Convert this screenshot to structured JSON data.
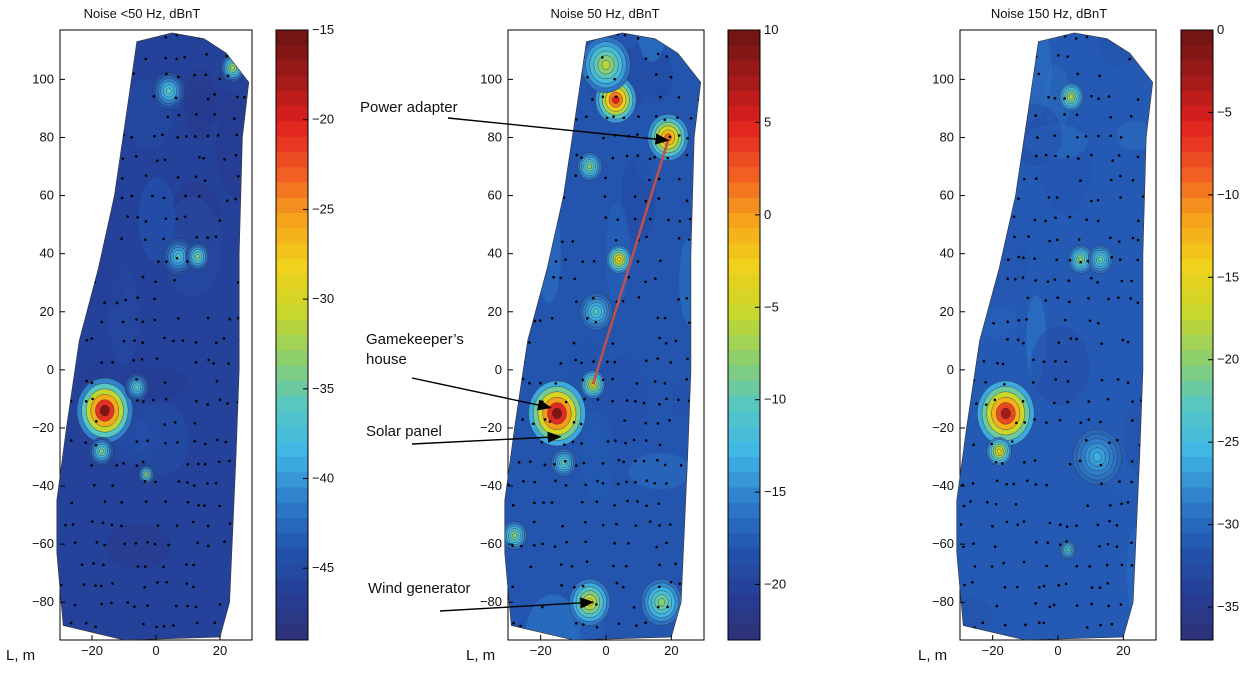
{
  "colors": {
    "background_low": "#1f3a8a",
    "plot_background": "#ffffff",
    "annotation_arrow": "#000000",
    "cable_line": "#c0504d",
    "points": "#000000"
  },
  "colormap": [
    "#2e3176",
    "#253f96",
    "#2356b0",
    "#2f7fcb",
    "#3fb6e6",
    "#57c7c0",
    "#8ecf6c",
    "#c9d72a",
    "#f2d11a",
    "#f6a01c",
    "#f05a23",
    "#e0201f",
    "#a01a1a",
    "#6a1410"
  ],
  "axis_label": "L, m",
  "chart_data": [
    {
      "type": "heatmap",
      "title": "Noise <50 Hz, dBnT",
      "xlim": [
        -30,
        30
      ],
      "ylim": [
        -93,
        117
      ],
      "x_ticks": [
        -20,
        0,
        20
      ],
      "y_ticks": [
        -80,
        -60,
        -40,
        -20,
        0,
        20,
        40,
        60,
        80,
        100
      ],
      "colorbar": {
        "min": -49,
        "max": -15,
        "ticks": [
          -45,
          -40,
          -35,
          -30,
          -25,
          -20,
          -15
        ]
      },
      "background_value": -46,
      "hotspots": [
        {
          "x": -16,
          "y": -14,
          "value": -16,
          "radius": 7
        },
        {
          "x": -17,
          "y": -28,
          "value": -34,
          "radius": 3
        },
        {
          "x": -6,
          "y": -6,
          "value": -36,
          "radius": 3
        },
        {
          "x": 4,
          "y": 96,
          "value": -36,
          "radius": 4
        },
        {
          "x": 7,
          "y": 39,
          "value": -37,
          "radius": 4
        },
        {
          "x": 13,
          "y": 39,
          "value": -34,
          "radius": 3
        },
        {
          "x": -3,
          "y": -36,
          "value": -33,
          "radius": 2
        },
        {
          "x": 24,
          "y": 104,
          "value": -32,
          "radius": 3
        }
      ],
      "outline": [
        [
          -31,
          -63
        ],
        [
          -29,
          -88
        ],
        [
          -10,
          -93
        ],
        [
          20,
          -92
        ],
        [
          23,
          -80
        ],
        [
          24,
          -55
        ],
        [
          25,
          -30
        ],
        [
          26,
          0
        ],
        [
          26,
          40
        ],
        [
          27,
          80
        ],
        [
          29,
          99
        ],
        [
          22,
          109
        ],
        [
          15,
          114
        ],
        [
          5,
          116
        ],
        [
          -6,
          113
        ],
        [
          -9,
          90
        ],
        [
          -13,
          60
        ],
        [
          -18,
          35
        ],
        [
          -24,
          10
        ],
        [
          -28,
          -20
        ],
        [
          -31,
          -45
        ]
      ]
    },
    {
      "type": "heatmap",
      "title": "Noise 50 Hz, dBnT",
      "xlim": [
        -30,
        30
      ],
      "ylim": [
        -93,
        117
      ],
      "x_ticks": [
        -20,
        0,
        20
      ],
      "y_ticks": [
        -80,
        -60,
        -40,
        -20,
        0,
        20,
        40,
        60,
        80,
        100
      ],
      "colorbar": {
        "min": -23,
        "max": 10,
        "ticks": [
          -20,
          -15,
          -10,
          -5,
          0,
          5,
          10
        ]
      },
      "background_value": -18,
      "hotspots": [
        {
          "x": -15,
          "y": -15,
          "value": 9,
          "radius": 7
        },
        {
          "x": 3,
          "y": 93,
          "value": 5,
          "radius": 5
        },
        {
          "x": 19,
          "y": 80,
          "value": 2,
          "radius": 5
        },
        {
          "x": -5,
          "y": -80,
          "value": -4,
          "radius": 5
        },
        {
          "x": 17,
          "y": -80,
          "value": -8,
          "radius": 5
        },
        {
          "x": -28,
          "y": -57,
          "value": -8,
          "radius": 3
        },
        {
          "x": -4,
          "y": -5,
          "value": -4,
          "radius": 3
        },
        {
          "x": 4,
          "y": 38,
          "value": -2,
          "radius": 3
        },
        {
          "x": 0,
          "y": 105,
          "value": -6,
          "radius": 6
        },
        {
          "x": -3,
          "y": 20,
          "value": -11,
          "radius": 4
        },
        {
          "x": -5,
          "y": 70,
          "value": -8,
          "radius": 3
        },
        {
          "x": -13,
          "y": -32,
          "value": -10,
          "radius": 3
        }
      ],
      "outline": [
        [
          -31,
          -63
        ],
        [
          -29,
          -88
        ],
        [
          -10,
          -93
        ],
        [
          20,
          -92
        ],
        [
          23,
          -80
        ],
        [
          24,
          -55
        ],
        [
          25,
          -30
        ],
        [
          26,
          0
        ],
        [
          26,
          40
        ],
        [
          27,
          80
        ],
        [
          29,
          99
        ],
        [
          22,
          109
        ],
        [
          15,
          114
        ],
        [
          5,
          116
        ],
        [
          -6,
          113
        ],
        [
          -9,
          90
        ],
        [
          -13,
          60
        ],
        [
          -18,
          35
        ],
        [
          -24,
          10
        ],
        [
          -28,
          -20
        ],
        [
          -31,
          -45
        ]
      ]
    },
    {
      "type": "heatmap",
      "title": "Noise 150 Hz, dBnT",
      "xlim": [
        -30,
        30
      ],
      "ylim": [
        -93,
        117
      ],
      "x_ticks": [
        -20,
        0,
        20
      ],
      "y_ticks": [
        -80,
        -60,
        -40,
        -20,
        0,
        20,
        40,
        60,
        80,
        100
      ],
      "colorbar": {
        "min": -37,
        "max": 0,
        "ticks": [
          -35,
          -30,
          -25,
          -20,
          -15,
          -10,
          -5,
          0
        ]
      },
      "background_value": -31,
      "hotspots": [
        {
          "x": -16,
          "y": -15,
          "value": -3,
          "radius": 7
        },
        {
          "x": -18,
          "y": -28,
          "value": -14,
          "radius": 3
        },
        {
          "x": 4,
          "y": 94,
          "value": -18,
          "radius": 3
        },
        {
          "x": 7,
          "y": 38,
          "value": -20,
          "radius": 3
        },
        {
          "x": 13,
          "y": 38,
          "value": -22,
          "radius": 3
        },
        {
          "x": 12,
          "y": -30,
          "value": -26,
          "radius": 6
        },
        {
          "x": 3,
          "y": -62,
          "value": -23,
          "radius": 2
        }
      ],
      "outline": [
        [
          -31,
          -63
        ],
        [
          -29,
          -88
        ],
        [
          -10,
          -93
        ],
        [
          20,
          -92
        ],
        [
          23,
          -80
        ],
        [
          24,
          -55
        ],
        [
          25,
          -30
        ],
        [
          26,
          0
        ],
        [
          26,
          40
        ],
        [
          27,
          80
        ],
        [
          29,
          99
        ],
        [
          22,
          109
        ],
        [
          15,
          114
        ],
        [
          5,
          116
        ],
        [
          -6,
          113
        ],
        [
          -9,
          90
        ],
        [
          -13,
          60
        ],
        [
          -18,
          35
        ],
        [
          -24,
          10
        ],
        [
          -28,
          -20
        ],
        [
          -31,
          -45
        ]
      ]
    }
  ],
  "annotations": [
    {
      "label": "Power adapter",
      "target": [
        19,
        79
      ]
    },
    {
      "label": "Gamekeeper’s",
      "label2": "house",
      "target": [
        -17,
        -13
      ]
    },
    {
      "label": "Solar panel",
      "target": [
        -14,
        -23
      ]
    },
    {
      "label": "Wind generator",
      "target": [
        -4,
        -80
      ]
    }
  ],
  "cable": {
    "from": [
      -4,
      -5
    ],
    "to": [
      19,
      79
    ]
  }
}
